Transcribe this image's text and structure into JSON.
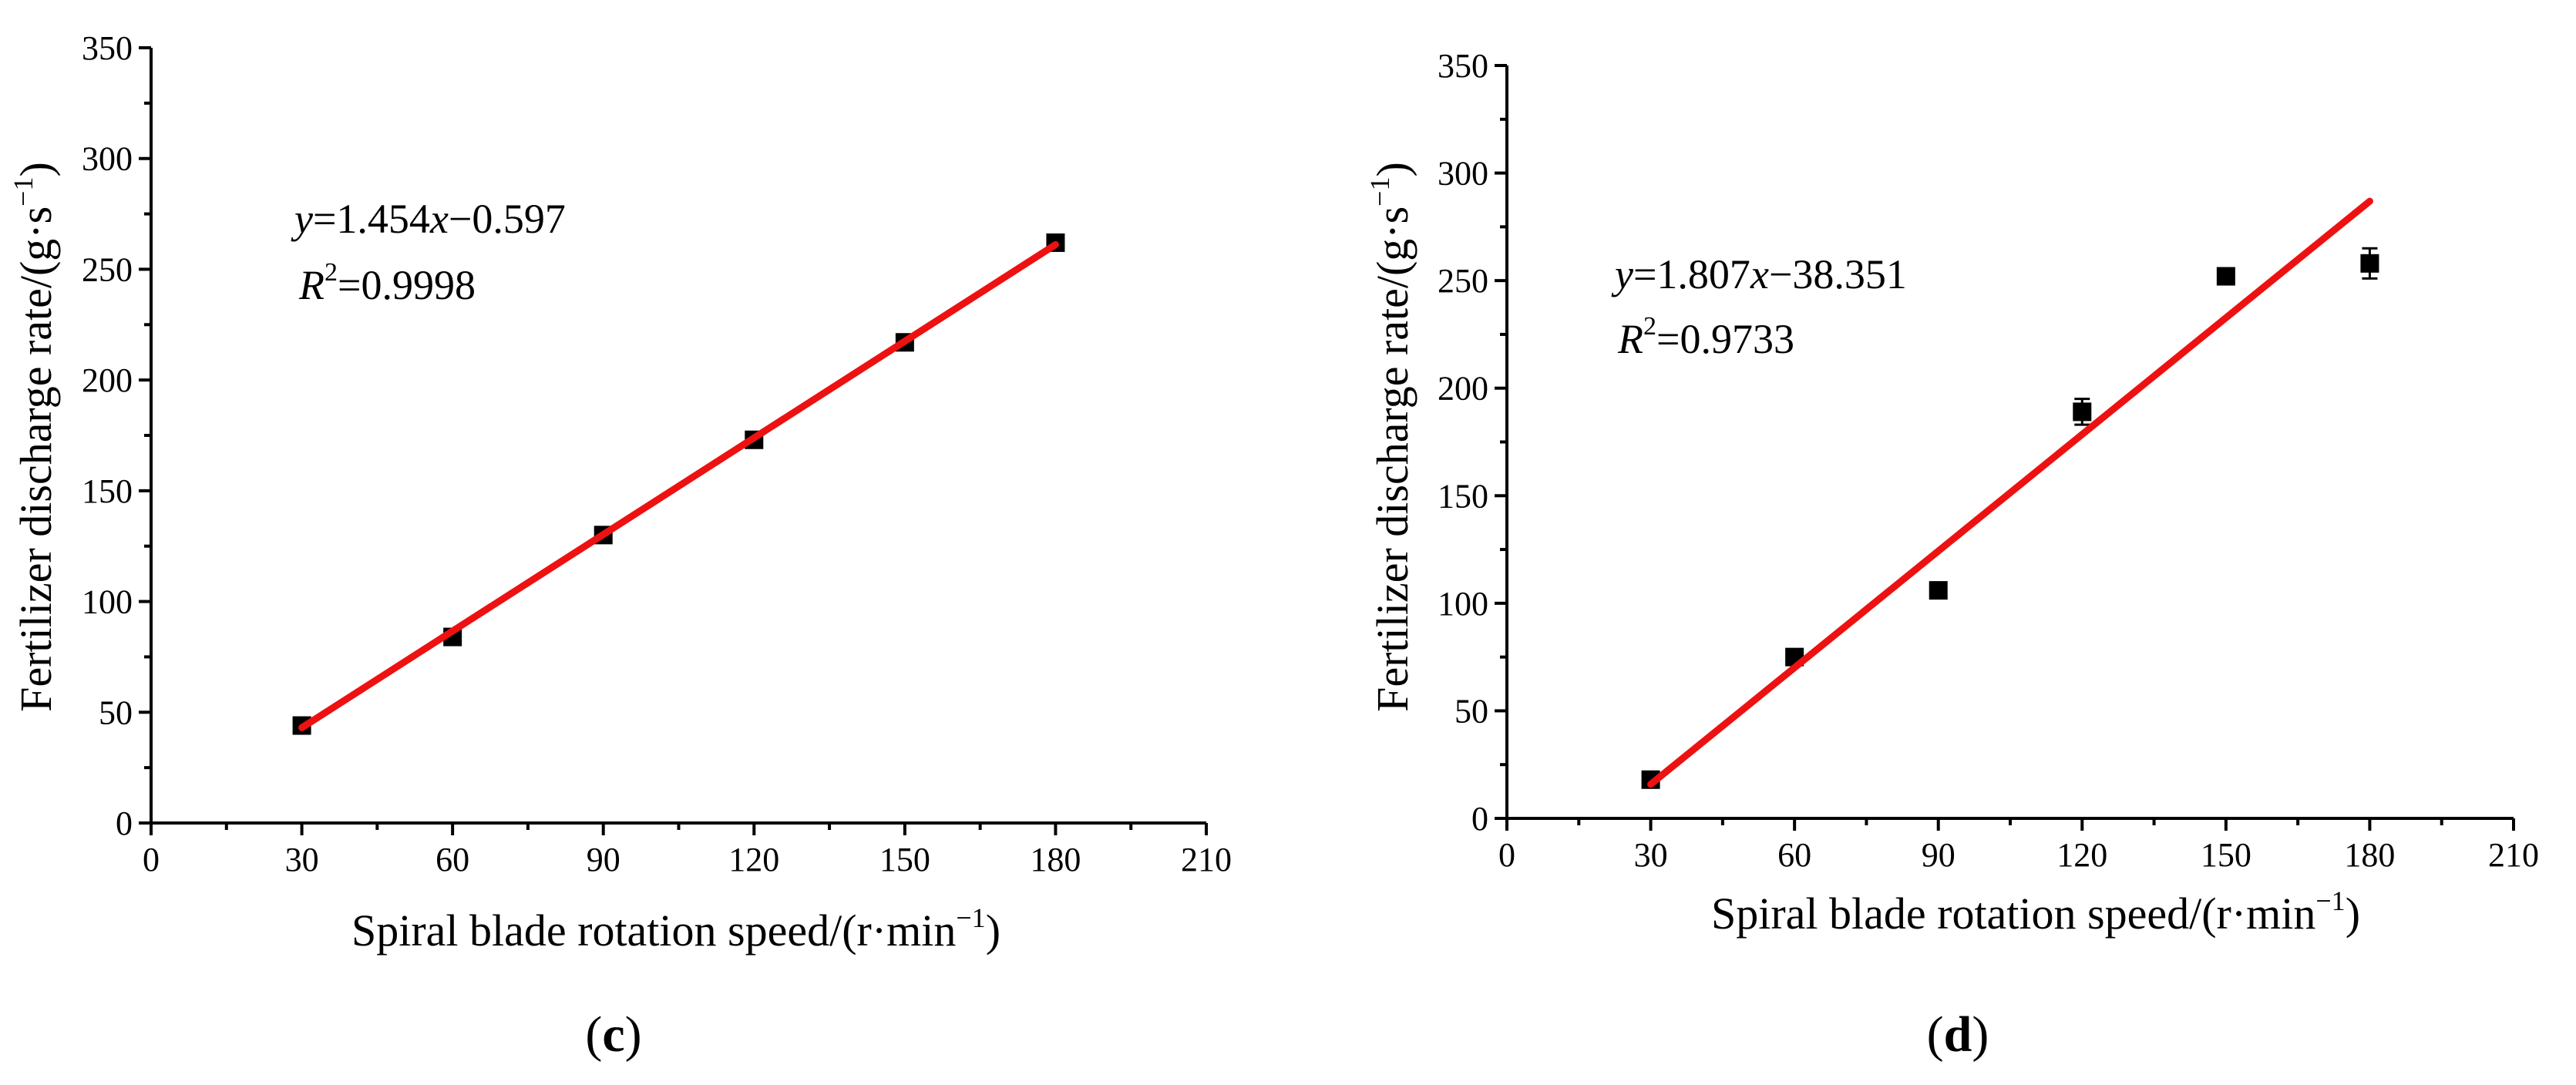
{
  "chart_data": [
    {
      "type": "scatter",
      "panel_label": {
        "open": "(",
        "letter": "c",
        "close": ")"
      },
      "xlabel": {
        "main": "Spiral blade rotation speed/(r·min",
        "sup": "−1",
        "end": ")"
      },
      "ylabel": {
        "main": "Fertilizer discharge rate/(g·s",
        "sup": "−1",
        "end": ")"
      },
      "xlim": [
        0,
        210
      ],
      "ylim": [
        0,
        350
      ],
      "xticks": [
        0,
        30,
        60,
        90,
        120,
        150,
        180,
        210
      ],
      "yticks": [
        0,
        50,
        100,
        150,
        200,
        250,
        300,
        350
      ],
      "x": [
        30,
        60,
        90,
        120,
        150,
        180
      ],
      "y": [
        44,
        84,
        130,
        173,
        217,
        262
      ],
      "error": [
        2,
        2,
        2,
        2,
        2,
        2
      ],
      "fit": {
        "slope": 1.454,
        "intercept": -0.597,
        "x_range": [
          30,
          180
        ],
        "color": "#ee1111"
      },
      "equation": {
        "y": "y",
        "mid": "=1.454",
        "x": "x",
        "tail": "−0.597"
      },
      "r2": {
        "r": "R",
        "sup": "2",
        "value": "=0.9998"
      },
      "grid": false,
      "marker_color": "#000000"
    },
    {
      "type": "scatter",
      "panel_label": {
        "open": "(",
        "letter": "d",
        "close": ")"
      },
      "xlabel": {
        "main": "Spiral blade rotation speed/(r·min",
        "sup": "−1",
        "end": ")"
      },
      "ylabel": {
        "main": "Fertilizer discharge rate/(g·s",
        "sup": "−1",
        "end": ")"
      },
      "xlim": [
        0,
        210
      ],
      "ylim": [
        0,
        350
      ],
      "xticks": [
        0,
        30,
        60,
        90,
        120,
        150,
        180,
        210
      ],
      "yticks": [
        0,
        50,
        100,
        150,
        200,
        250,
        300,
        350
      ],
      "x": [
        30,
        60,
        90,
        120,
        150,
        180
      ],
      "y": [
        18,
        75,
        106,
        189,
        252,
        258
      ],
      "error": [
        2,
        3,
        2,
        6,
        3,
        7
      ],
      "fit": {
        "slope": 1.807,
        "intercept": -38.351,
        "x_range": [
          30,
          180
        ],
        "color": "#ee1111"
      },
      "equation": {
        "y": "y",
        "mid": "=1.807",
        "x": "x",
        "tail": "−38.351"
      },
      "r2": {
        "r": "R",
        "sup": "2",
        "value": "=0.9733"
      },
      "grid": false,
      "marker_color": "#000000"
    }
  ]
}
